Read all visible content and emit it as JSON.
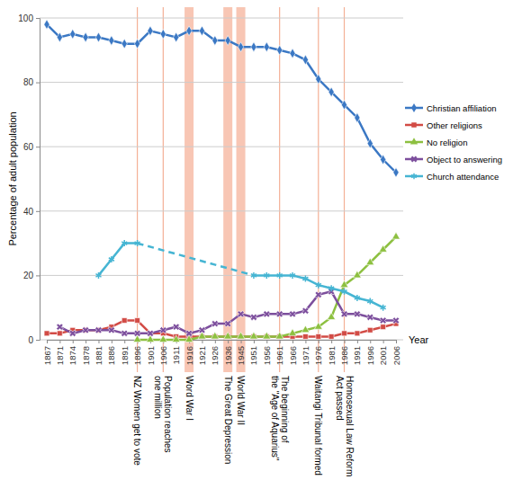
{
  "chart_data": {
    "type": "line",
    "y_label": "Percentage of adult population",
    "x_label": "Year",
    "categories": [
      "1867",
      "1871",
      "1874",
      "1878",
      "1881",
      "1886",
      "1891",
      "1896",
      "1901",
      "1906",
      "1911",
      "1916",
      "1921",
      "1926",
      "1936",
      "1945",
      "1951",
      "1956",
      "1961",
      "1966",
      "1971",
      "1976",
      "1981",
      "1986",
      "1991",
      "1996",
      "2001",
      "2006"
    ],
    "ylim": [
      0,
      100
    ],
    "yticks": [
      0,
      20,
      40,
      60,
      80,
      100
    ],
    "grid": true,
    "legend": "right",
    "series": [
      {
        "name": "Christian affiliation",
        "color": "#3b78c4",
        "marker": "diamond",
        "values": [
          98,
          94,
          95,
          94,
          94,
          93,
          92,
          92,
          96,
          95,
          94,
          96,
          96,
          93,
          93,
          91,
          91,
          91,
          90,
          89,
          87,
          81,
          77,
          73,
          69,
          61,
          56,
          52
        ]
      },
      {
        "name": "Other religions",
        "color": "#d24b45",
        "marker": "square",
        "values": [
          2,
          2,
          3,
          3,
          3,
          4,
          6,
          6,
          2,
          2,
          1,
          1,
          1,
          1,
          1,
          1,
          1,
          1,
          1,
          1,
          1,
          1,
          1,
          2,
          2,
          3,
          4,
          5
        ]
      },
      {
        "name": "No religion",
        "color": "#8dc040",
        "marker": "triangle",
        "values": [
          null,
          null,
          null,
          null,
          null,
          null,
          null,
          0,
          0,
          0,
          0,
          0,
          1,
          1,
          1,
          1,
          1,
          1,
          1,
          2,
          3,
          4,
          7,
          17,
          20,
          24,
          28,
          32
        ]
      },
      {
        "name": "Object to answering",
        "color": "#7d4f9d",
        "marker": "x",
        "values": [
          null,
          4,
          2,
          3,
          3,
          3,
          2,
          2,
          2,
          3,
          4,
          2,
          3,
          5,
          5,
          8,
          7,
          8,
          8,
          8,
          9,
          14,
          15,
          8,
          8,
          7,
          6,
          6
        ]
      },
      {
        "name": "Church attendance",
        "color": "#46b5d3",
        "marker": "asterisk",
        "values": [
          null,
          null,
          null,
          null,
          20,
          25,
          30,
          30,
          null,
          null,
          null,
          null,
          null,
          null,
          null,
          null,
          20,
          20,
          20,
          20,
          19,
          17,
          16,
          15,
          13,
          12,
          10,
          null
        ]
      }
    ],
    "events": [
      {
        "label": [
          "NZ Women get to vote"
        ],
        "x": "1896"
      },
      {
        "label": [
          "Population reaches",
          "one million"
        ],
        "x": "1906"
      },
      {
        "label": [
          "The beginning of",
          "the \"Age of Aquarius\""
        ],
        "x": "1961"
      },
      {
        "label": [
          "Waitangi Tribunal formed"
        ],
        "x": "1976"
      },
      {
        "label": [
          "Homosexual Law Reform",
          "Act passed"
        ],
        "x": "1986"
      }
    ],
    "shaded_periods": [
      {
        "label": [
          "Word War I"
        ],
        "x": "1916"
      },
      {
        "label": [
          "The Great Depression"
        ],
        "x": "1936"
      },
      {
        "label": [
          "World War II"
        ],
        "x": "1945"
      }
    ]
  }
}
